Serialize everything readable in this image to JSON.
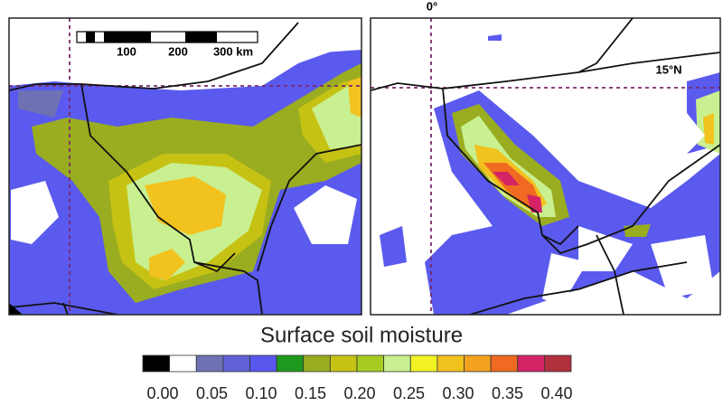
{
  "maps": [
    {
      "scale_bar": {
        "labels": [
          "100",
          "200",
          "300 km"
        ]
      }
    },
    {
      "labels": {
        "meridian": "0°",
        "parallel": "15°N"
      }
    }
  ],
  "legend": {
    "title": "Surface soil moisture",
    "colors": [
      "#000000",
      "#ffffff",
      "#6e72b4",
      "#6262d6",
      "#5858ee",
      "#1f9a1f",
      "#9aac20",
      "#c6c214",
      "#a6cc22",
      "#c8f090",
      "#f2f224",
      "#f2c21e",
      "#f2a21e",
      "#f06a22",
      "#d42466",
      "#b0303e"
    ],
    "ticks": [
      "0.00",
      "0.05",
      "0.10",
      "0.15",
      "0.20",
      "0.25",
      "0.30",
      "0.35",
      "0.40"
    ]
  }
}
